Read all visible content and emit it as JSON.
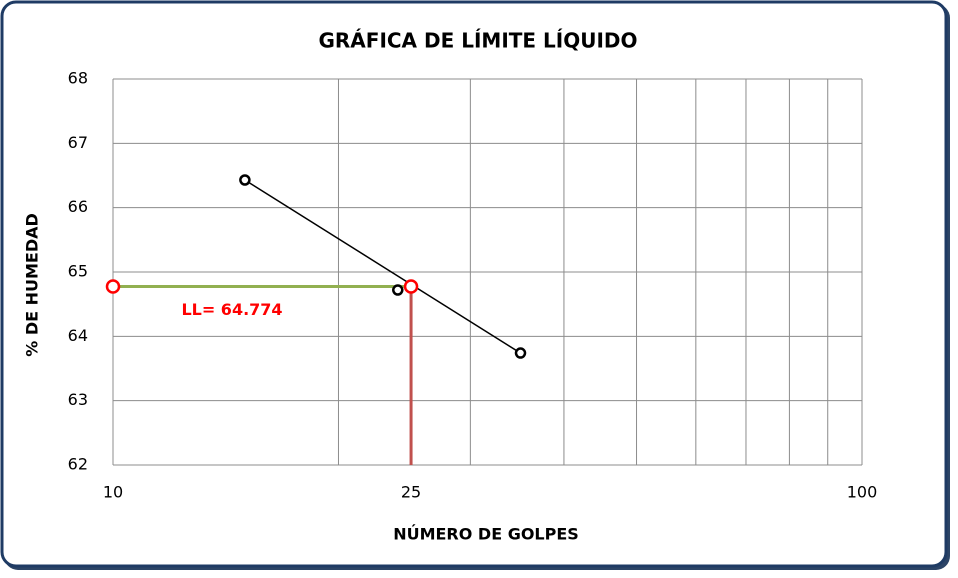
{
  "chart_data": {
    "type": "scatter",
    "title": "GRÁFICA DE LÍMITE LÍQUIDO",
    "x_label": "NÚMERO DE GOLPES",
    "y_label": "% DE HUMEDAD",
    "x_scale": "log",
    "xlim": [
      10,
      100
    ],
    "xticks": [
      10,
      25,
      100
    ],
    "x_grid": [
      10,
      20,
      30,
      40,
      50,
      60,
      70,
      80,
      90,
      100
    ],
    "ylim": [
      62,
      68
    ],
    "yticks": [
      62,
      63,
      64,
      65,
      66,
      67,
      68
    ],
    "grid": true,
    "series": [
      {
        "color": "#000000",
        "x": [
          15,
          24,
          35
        ],
        "values": [
          66.43,
          64.72,
          63.74
        ],
        "trendline": true
      }
    ],
    "liquid_limit": {
      "x": 25,
      "value": 64.774,
      "label": "LL= 64.774",
      "color": "#ff0000",
      "h_color": "#92b050",
      "v_color": "#c0504d"
    }
  }
}
